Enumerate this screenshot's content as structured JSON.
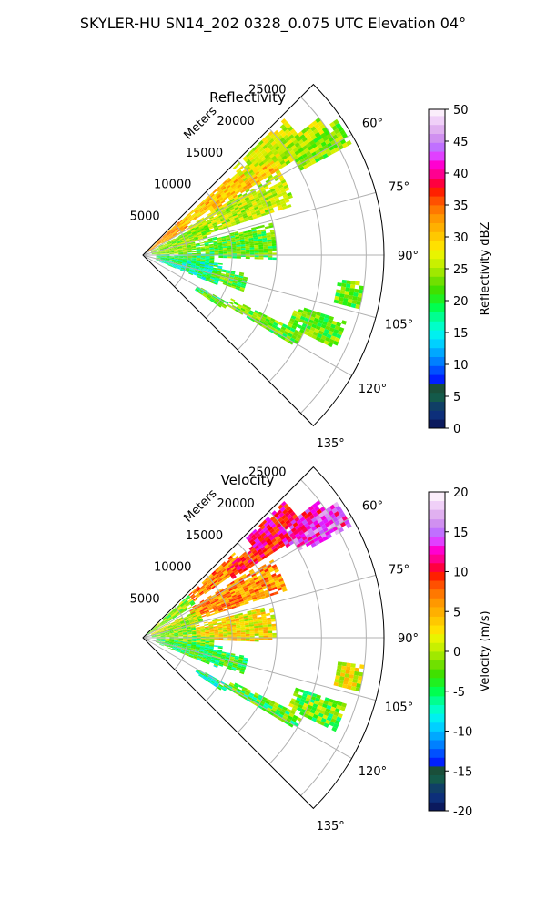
{
  "figure": {
    "title": "SKYLER-HU  SN14_202  0328_0.075 UTC Elevation 04°"
  },
  "chart_data": [
    {
      "type": "heatmap",
      "projection": "polar-sector",
      "title": "Reflectivity",
      "range_label": "Meters",
      "theta_direction": "clockwise from north",
      "theta_range_deg": [
        45,
        135
      ],
      "theta_ticks": [
        "60°",
        "75°",
        "90°",
        "105°",
        "120°",
        "135°"
      ],
      "theta_tick_values": [
        60,
        75,
        90,
        105,
        120,
        135
      ],
      "r_max": 27000,
      "r_ticks": [
        "5000",
        "10000",
        "15000",
        "20000",
        "25000"
      ],
      "r_tick_values": [
        5000,
        10000,
        15000,
        20000,
        25000
      ],
      "grid": true,
      "colorbar": {
        "label": "Reflectivity dBZ",
        "range": [
          0,
          50
        ],
        "ticks": [
          "0",
          "5",
          "10",
          "15",
          "20",
          "25",
          "30",
          "35",
          "40",
          "45",
          "50"
        ],
        "tick_values": [
          0,
          5,
          10,
          15,
          20,
          25,
          30,
          35,
          40,
          45,
          50
        ],
        "colors": [
          "#0b1a5e",
          "#0d2f7a",
          "#103f66",
          "#145a4a",
          "#1a4f3a",
          "#0020ff",
          "#0050ff",
          "#0080ff",
          "#00a8ff",
          "#00d0ff",
          "#00f0f0",
          "#00ffc8",
          "#00ff90",
          "#00ff50",
          "#20f020",
          "#40e000",
          "#70e000",
          "#a0e800",
          "#c8f000",
          "#e8f400",
          "#ffe000",
          "#ffc800",
          "#ffb000",
          "#ff9800",
          "#ff7800",
          "#ff5000",
          "#ff2000",
          "#ff0040",
          "#ff0090",
          "#ff00d0",
          "#e040ff",
          "#c070ff",
          "#d090f0",
          "#e0b0f0",
          "#f0d0f8",
          "#fbeefb"
        ],
        "palette_positions": [
          0,
          1.4,
          2.8,
          4.2,
          5.6,
          7,
          8.4,
          9.8,
          11.2,
          12.6,
          14,
          15.4,
          16.8,
          18.2,
          19.6,
          21,
          22.4,
          23.8,
          25.2,
          26.6,
          28,
          29.4,
          30.8,
          32.2,
          33.6,
          35,
          36.4,
          37.8,
          39.2,
          40.6,
          42,
          43.4,
          44.8,
          46.2,
          47.6,
          49
        ],
        "color_stops": [
          [
            0,
            "#0b1640"
          ],
          [
            2,
            "#0d2a6e"
          ],
          [
            3.5,
            "#1a4a3a"
          ],
          [
            5,
            "#0a2aff"
          ],
          [
            7,
            "#0060ff"
          ],
          [
            9,
            "#00a0ff"
          ],
          [
            11,
            "#00d8ff"
          ],
          [
            13,
            "#00ffd0"
          ],
          [
            15,
            "#00ff70"
          ],
          [
            17,
            "#30f000"
          ],
          [
            19,
            "#70e000"
          ],
          [
            21,
            "#a8ec00"
          ],
          [
            23,
            "#d8f000"
          ],
          [
            25,
            "#ffe800"
          ],
          [
            27,
            "#ffd000"
          ],
          [
            29,
            "#ffb000"
          ],
          [
            31,
            "#ff9000"
          ],
          [
            33,
            "#ff6000"
          ],
          [
            35,
            "#ff2000"
          ],
          [
            37,
            "#ff0050"
          ],
          [
            39,
            "#ff00b0"
          ],
          [
            41,
            "#d800ff"
          ],
          [
            43,
            "#b050ff"
          ],
          [
            45,
            "#d090f0"
          ],
          [
            47,
            "#e8b8f0"
          ],
          [
            49,
            "#f8e8f8"
          ],
          [
            50,
            "#fff4ff"
          ]
        ]
      },
      "echo_cells": [
        {
          "t0": 47,
          "t1": 60,
          "r0": 500,
          "r1": 6000,
          "v": 30
        },
        {
          "t0": 48,
          "t1": 56,
          "r0": 5000,
          "r1": 14000,
          "v": 27
        },
        {
          "t0": 50,
          "t1": 58,
          "r0": 9000,
          "r1": 20000,
          "v": 28
        },
        {
          "t0": 46,
          "t1": 54,
          "r0": 14000,
          "r1": 22000,
          "v": 23
        },
        {
          "t0": 52,
          "t1": 58,
          "r0": 18000,
          "r1": 25000,
          "v": 22
        },
        {
          "t0": 58,
          "t1": 72,
          "r0": 6000,
          "r1": 18000,
          "v": 22
        },
        {
          "t0": 62,
          "t1": 75,
          "r0": 1000,
          "r1": 8000,
          "v": 20
        },
        {
          "t0": 72,
          "t1": 88,
          "r0": 1000,
          "r1": 6000,
          "v": 20
        },
        {
          "t0": 76,
          "t1": 92,
          "r0": 6000,
          "r1": 15000,
          "v": 18
        },
        {
          "t0": 88,
          "t1": 102,
          "r0": 1500,
          "r1": 8000,
          "v": 16
        },
        {
          "t0": 96,
          "t1": 112,
          "r0": 1500,
          "r1": 9000,
          "v": 14
        },
        {
          "t0": 100,
          "t1": 110,
          "r0": 8000,
          "r1": 12000,
          "v": 18
        },
        {
          "t0": 55,
          "t1": 62,
          "r0": 20000,
          "r1": 26500,
          "v": 20
        },
        {
          "t0": 97,
          "t1": 104,
          "r0": 22000,
          "r1": 25000,
          "v": 19
        },
        {
          "t0": 108,
          "t1": 116,
          "r0": 18000,
          "r1": 24000,
          "v": 19
        },
        {
          "t0": 116,
          "t1": 121,
          "r0": 11000,
          "r1": 20000,
          "v": 19
        },
        {
          "t0": 119,
          "t1": 124,
          "r0": 7000,
          "r1": 11000,
          "v": 17
        }
      ]
    },
    {
      "type": "heatmap",
      "projection": "polar-sector",
      "title": "Velocity",
      "range_label": "Meters",
      "theta_direction": "clockwise from north",
      "theta_range_deg": [
        45,
        135
      ],
      "theta_ticks": [
        "60°",
        "75°",
        "90°",
        "105°",
        "120°",
        "135°"
      ],
      "theta_tick_values": [
        60,
        75,
        90,
        105,
        120,
        135
      ],
      "r_max": 27000,
      "r_ticks": [
        "5000",
        "10000",
        "15000",
        "20000",
        "25000"
      ],
      "r_tick_values": [
        5000,
        10000,
        15000,
        20000,
        25000
      ],
      "grid": true,
      "colorbar": {
        "label": "Velocity (m/s)",
        "range": [
          -20,
          20
        ],
        "ticks": [
          "-20",
          "-15",
          "-10",
          "-5",
          "0",
          "5",
          "10",
          "15",
          "20"
        ],
        "tick_values": [
          -20,
          -15,
          -10,
          -5,
          0,
          5,
          10,
          15,
          20
        ],
        "colors": [
          "#0b1a5e",
          "#0d2f7a",
          "#103f66",
          "#145a4a",
          "#1a4f3a",
          "#0020ff",
          "#0050ff",
          "#0080ff",
          "#00a8ff",
          "#00d0ff",
          "#00f0f0",
          "#00ffc8",
          "#00ff90",
          "#00ff50",
          "#20f020",
          "#40e000",
          "#70e000",
          "#a0e800",
          "#c8f000",
          "#e8f400",
          "#ffe000",
          "#ffc800",
          "#ffb000",
          "#ff9800",
          "#ff7800",
          "#ff5000",
          "#ff2000",
          "#ff0040",
          "#ff0090",
          "#ff00d0",
          "#e040ff",
          "#c070ff",
          "#d090f0",
          "#e0b0f0",
          "#f0d0f8",
          "#fbeefb"
        ],
        "palette_positions": [
          -20,
          -18.9,
          -17.8,
          -16.6,
          -15.5,
          -14.4,
          -13.3,
          -12.2,
          -11.1,
          -10,
          -8.9,
          -7.8,
          -6.7,
          -5.6,
          -4.4,
          -3.3,
          -2.2,
          -1.1,
          0,
          1.1,
          2.2,
          3.3,
          4.4,
          5.6,
          6.7,
          7.8,
          8.9,
          10,
          11.1,
          12.2,
          13.3,
          14.4,
          15.5,
          16.6,
          17.8,
          18.9
        ],
        "color_stops": [
          [
            -20,
            "#0b1640"
          ],
          [
            -18,
            "#0d2a6e"
          ],
          [
            -16.5,
            "#1a4a3a"
          ],
          [
            -15,
            "#0a2aff"
          ],
          [
            -13,
            "#0060ff"
          ],
          [
            -11,
            "#00d0ff"
          ],
          [
            -9,
            "#00ffd0"
          ],
          [
            -7,
            "#00ff70"
          ],
          [
            -5,
            "#30f000"
          ],
          [
            -3,
            "#80e000"
          ],
          [
            -1,
            "#c8f000"
          ],
          [
            0,
            "#ffe800"
          ],
          [
            2,
            "#ffd000"
          ],
          [
            4,
            "#ffa800"
          ],
          [
            6,
            "#ff8000"
          ],
          [
            8,
            "#ff4000"
          ],
          [
            10,
            "#ff0000"
          ],
          [
            12,
            "#ff0080"
          ],
          [
            14,
            "#f000ff"
          ],
          [
            16,
            "#c050ff"
          ],
          [
            18,
            "#e0a8f0"
          ],
          [
            20,
            "#fcecfc"
          ]
        ]
      },
      "echo_cells": [
        {
          "t0": 47,
          "t1": 58,
          "r0": 500,
          "r1": 7000,
          "v": -3
        },
        {
          "t0": 47,
          "t1": 55,
          "r0": 7000,
          "r1": 14000,
          "v": 6
        },
        {
          "t0": 50,
          "t1": 57,
          "r0": 12000,
          "r1": 20000,
          "v": 9
        },
        {
          "t0": 46,
          "t1": 53,
          "r0": 16000,
          "r1": 22000,
          "v": 11
        },
        {
          "t0": 52,
          "t1": 58,
          "r0": 19000,
          "r1": 25000,
          "v": 13
        },
        {
          "t0": 58,
          "t1": 72,
          "r0": 6000,
          "r1": 17000,
          "v": 5
        },
        {
          "t0": 62,
          "t1": 76,
          "r0": 1000,
          "r1": 7000,
          "v": -1
        },
        {
          "t0": 72,
          "t1": 88,
          "r0": 1000,
          "r1": 6000,
          "v": -3
        },
        {
          "t0": 76,
          "t1": 92,
          "r0": 6000,
          "r1": 15000,
          "v": 1
        },
        {
          "t0": 88,
          "t1": 102,
          "r0": 1500,
          "r1": 8000,
          "v": -4
        },
        {
          "t0": 96,
          "t1": 112,
          "r0": 1500,
          "r1": 9000,
          "v": -6
        },
        {
          "t0": 100,
          "t1": 110,
          "r0": 8000,
          "r1": 12000,
          "v": -5
        },
        {
          "t0": 55,
          "t1": 62,
          "r0": 20000,
          "r1": 26500,
          "v": 15
        },
        {
          "t0": 97,
          "t1": 104,
          "r0": 22000,
          "r1": 25000,
          "v": 0
        },
        {
          "t0": 108,
          "t1": 116,
          "r0": 18000,
          "r1": 24000,
          "v": -4
        },
        {
          "t0": 116,
          "t1": 121,
          "r0": 11000,
          "r1": 20000,
          "v": -5
        },
        {
          "t0": 119,
          "t1": 124,
          "r0": 7000,
          "r1": 11000,
          "v": -7
        }
      ]
    }
  ]
}
